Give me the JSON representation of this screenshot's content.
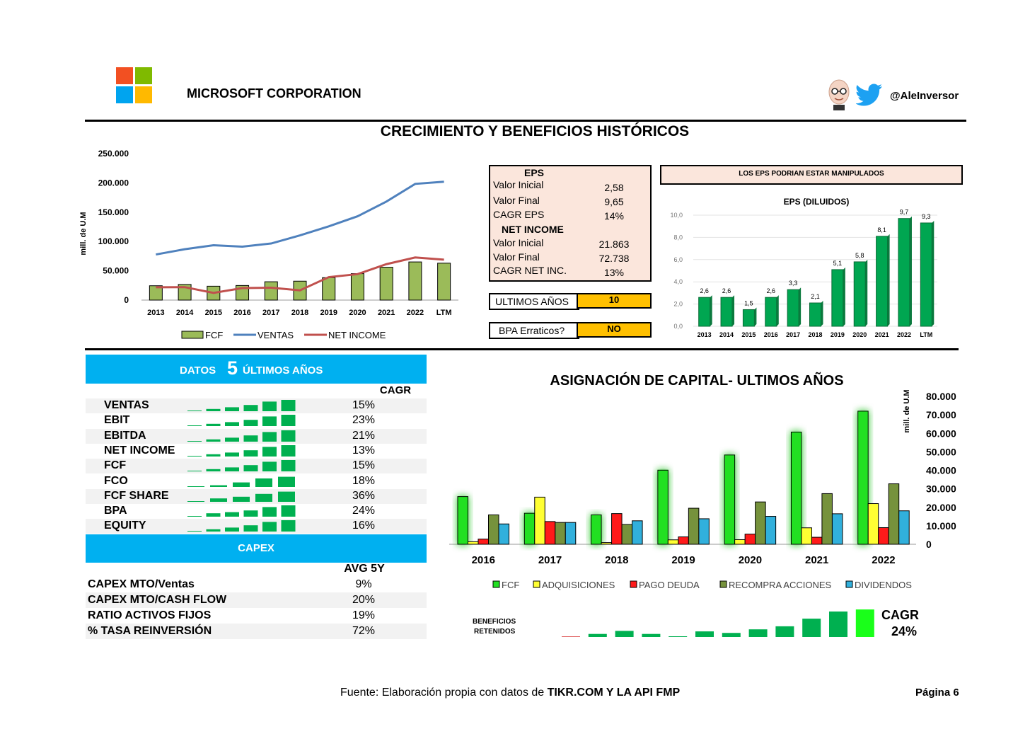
{
  "header": {
    "company": "MICROSOFT CORPORATION",
    "twitter_handle": "@AleInversor",
    "logo_colors": [
      "#f25022",
      "#7fba00",
      "#00a4ef",
      "#ffb900"
    ],
    "twitter_color": "#1da1f2"
  },
  "main_title": "CRECIMIENTO Y BENEFICIOS HISTÓRICOS",
  "eps_box": {
    "eps_title": "EPS",
    "rows_eps": [
      {
        "label": "Valor Inicial",
        "value": "2,58"
      },
      {
        "label": "Valor Final",
        "value": "9,65"
      },
      {
        "label": "CAGR EPS",
        "value": "14%"
      }
    ],
    "ni_title": "NET INCOME",
    "rows_ni": [
      {
        "label": "Valor Inicial",
        "value": "21.863"
      },
      {
        "label": "Valor Final",
        "value": "72.738"
      },
      {
        "label": "CAGR NET INC.",
        "value": "13%"
      }
    ],
    "ultimos_label": "ULTIMOS AÑOS",
    "ultimos_value": "10",
    "bpa_label": "BPA Erraticos?",
    "bpa_value": "NO"
  },
  "eps_warning": "LOS EPS PODRIAN ESTAR MANIPULADOS",
  "five_year": {
    "band_prefix": "DATOS",
    "band_number": "5",
    "band_suffix": "ÚLTIMOS AÑOS",
    "cagr_header": "CAGR",
    "rows": [
      {
        "label": "VENTAS",
        "value": "15%",
        "spark": [
          0.05,
          0.2,
          0.35,
          0.55,
          0.85,
          1.0
        ]
      },
      {
        "label": "EBIT",
        "value": "23%",
        "spark": [
          0.05,
          0.2,
          0.35,
          0.55,
          0.85,
          1.0
        ]
      },
      {
        "label": "EBITDA",
        "value": "21%",
        "spark": [
          0.05,
          0.2,
          0.35,
          0.55,
          0.85,
          1.0
        ]
      },
      {
        "label": "NET INCOME",
        "value": "13%",
        "spark": [
          0.05,
          0.2,
          0.35,
          0.55,
          0.85,
          1.0
        ]
      },
      {
        "label": "FCF",
        "value": "15%",
        "spark": [
          0.05,
          0.2,
          0.35,
          0.55,
          0.85,
          1.0
        ]
      },
      {
        "label": "FCO",
        "value": "18%",
        "spark": [
          0.05,
          0.15,
          0.4,
          0.75,
          0.9
        ]
      },
      {
        "label": "FCF SHARE",
        "value": "36%",
        "spark": [
          0.05,
          0.3,
          0.45,
          0.7,
          0.9
        ]
      },
      {
        "label": "BPA",
        "value": "24%",
        "spark": [
          0.05,
          0.3,
          0.4,
          0.55,
          0.85,
          1.0
        ]
      },
      {
        "label": "EQUITY",
        "value": "16%",
        "spark": [
          0.05,
          0.2,
          0.35,
          0.55,
          0.85,
          1.0
        ]
      }
    ],
    "spark_color": "#00b050"
  },
  "capex": {
    "band_label": "CAPEX",
    "avg_header": "AVG 5Y",
    "rows": [
      {
        "label": "CAPEX MTO/Ventas",
        "value": "9%"
      },
      {
        "label": "CAPEX MTO/CASH FLOW",
        "value": "20%"
      },
      {
        "label": "RATIO ACTIVOS FIJOS",
        "value": "19%"
      },
      {
        "label": "% TASA REINVERSIÓN",
        "value": "72%"
      }
    ]
  },
  "retained": {
    "label_line1": "BENEFICIOS",
    "label_line2": "RETENIDOS",
    "cagr_label": "CAGR",
    "cagr_value": "24%",
    "bars": [
      0.02,
      0.12,
      0.24,
      0.12,
      0.02,
      0.22,
      0.16,
      0.3,
      0.42,
      0.72,
      1.0,
      1.08
    ]
  },
  "footer": {
    "source_prefix": "Fuente: Elaboración propia con datos de ",
    "source_bold": "TIKR.COM Y LA API FMP",
    "page": "Página 6"
  },
  "chart_data": [
    {
      "type": "line",
      "title": "",
      "ylabel": "mill. de U.M",
      "ylim": [
        0,
        250000
      ],
      "yticks": [
        "250.000",
        "200.000",
        "150.000",
        "100.000",
        "50.000",
        "0"
      ],
      "categories": [
        "2013",
        "2014",
        "2015",
        "2016",
        "2017",
        "2018",
        "2019",
        "2020",
        "2021",
        "2022",
        "LTM"
      ],
      "series": [
        {
          "name": "FCF",
          "kind": "bar",
          "color": "#9bbb59",
          "values": [
            24500,
            26700,
            23700,
            24900,
            31300,
            32300,
            38300,
            45200,
            56100,
            65100,
            63000
          ]
        },
        {
          "name": "VENTAS",
          "kind": "line",
          "color": "#4f81bd",
          "values": [
            77800,
            86800,
            93600,
            91200,
            96600,
            110400,
            125800,
            143000,
            168100,
            198300,
            202000
          ]
        },
        {
          "name": "NET INCOME",
          "kind": "line",
          "color": "#c0504d",
          "values": [
            21900,
            22100,
            12200,
            20500,
            21200,
            16600,
            39200,
            44300,
            61300,
            72700,
            69000
          ]
        }
      ],
      "legend": "bottom"
    },
    {
      "type": "bar",
      "title": "EPS (DILUIDOS)",
      "ylim": [
        0,
        10
      ],
      "yticks": [
        "10,0",
        "8,0",
        "6,0",
        "4,0",
        "2,0",
        "0,0"
      ],
      "categories": [
        "2013",
        "2014",
        "2015",
        "2016",
        "2017",
        "2018",
        "2019",
        "2020",
        "2021",
        "2022",
        "LTM"
      ],
      "values": [
        2.6,
        2.6,
        1.5,
        2.6,
        3.3,
        2.1,
        5.1,
        5.8,
        8.1,
        9.7,
        9.3
      ],
      "labels": [
        "2,6",
        "2,6",
        "1,5",
        "2,6",
        "3,3",
        "2,1",
        "5,1",
        "5,8",
        "8,1",
        "9,7",
        "9,3"
      ],
      "color": "#00a651"
    },
    {
      "type": "bar",
      "title": "ASIGNACIÓN DE CAPITAL- ULTIMOS AÑOS",
      "ylabel": "mill. de U.M",
      "ylim": [
        0,
        80000
      ],
      "yticks": [
        "80.000",
        "70.000",
        "60.000",
        "50.000",
        "40.000",
        "30.000",
        "20.000",
        "10.000",
        "0"
      ],
      "categories": [
        "2016",
        "2017",
        "2018",
        "2019",
        "2020",
        "2021",
        "2022"
      ],
      "series": [
        {
          "name": "FCF",
          "color": "#22e022",
          "values": [
            25800,
            16800,
            15900,
            40100,
            48300,
            60700,
            72000
          ]
        },
        {
          "name": "ADQUISICIONES",
          "color": "#ffff33",
          "values": [
            1400,
            25500,
            900,
            2400,
            2500,
            8900,
            22000
          ]
        },
        {
          "name": "PAGO DEUDA",
          "color": "#ff1a1a",
          "values": [
            2800,
            12300,
            16600,
            4000,
            5500,
            3800,
            9000
          ]
        },
        {
          "name": "RECOMPRA ACCIONES",
          "color": "#76923c",
          "values": [
            15900,
            11800,
            10700,
            19500,
            22900,
            27400,
            32700
          ]
        },
        {
          "name": "DIVIDENDOS",
          "color": "#31b0dc",
          "values": [
            11000,
            11800,
            12700,
            13800,
            15100,
            16500,
            18100
          ]
        }
      ],
      "legend": "bottom"
    }
  ]
}
